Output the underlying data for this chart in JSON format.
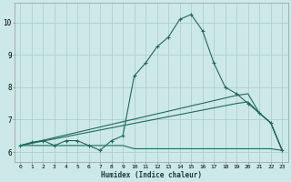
{
  "xlabel": "Humidex (Indice chaleur)",
  "bg_color": "#cce8e8",
  "grid_color": "#b0d0d0",
  "line_color": "#1e6b5a",
  "xlim": [
    -0.5,
    23.5
  ],
  "ylim": [
    5.7,
    10.6
  ],
  "yticks": [
    6,
    7,
    8,
    9,
    10
  ],
  "xticks": [
    0,
    1,
    2,
    3,
    4,
    5,
    6,
    7,
    8,
    9,
    10,
    11,
    12,
    13,
    14,
    15,
    16,
    17,
    18,
    19,
    20,
    21,
    22,
    23
  ],
  "line1_x": [
    0,
    1,
    2,
    3,
    4,
    5,
    6,
    7,
    8,
    9,
    10,
    11,
    12,
    13,
    14,
    15,
    16,
    17,
    18,
    19,
    20,
    21,
    22,
    23
  ],
  "line1_y": [
    6.2,
    6.3,
    6.35,
    6.2,
    6.35,
    6.35,
    6.2,
    6.05,
    6.35,
    6.5,
    8.35,
    8.75,
    9.25,
    9.55,
    10.1,
    10.25,
    9.75,
    8.75,
    8.0,
    7.8,
    7.5,
    7.2,
    6.9,
    6.05
  ],
  "line2_x": [
    0,
    1,
    2,
    3,
    4,
    5,
    6,
    7,
    8,
    9,
    10,
    11,
    12,
    13,
    14,
    15,
    16,
    17,
    18,
    19,
    20,
    21,
    22,
    23
  ],
  "line2_y": [
    6.2,
    6.2,
    6.2,
    6.2,
    6.2,
    6.2,
    6.2,
    6.2,
    6.2,
    6.2,
    6.1,
    6.1,
    6.1,
    6.1,
    6.1,
    6.1,
    6.1,
    6.1,
    6.1,
    6.1,
    6.1,
    6.1,
    6.1,
    6.05
  ],
  "line3_x": [
    0,
    19,
    20,
    21,
    22,
    23
  ],
  "line3_y": [
    6.2,
    7.75,
    7.8,
    7.2,
    6.9,
    6.05
  ],
  "line4_x": [
    0,
    19,
    20,
    21,
    22,
    23
  ],
  "line4_y": [
    6.2,
    7.5,
    7.55,
    7.2,
    6.9,
    6.05
  ]
}
